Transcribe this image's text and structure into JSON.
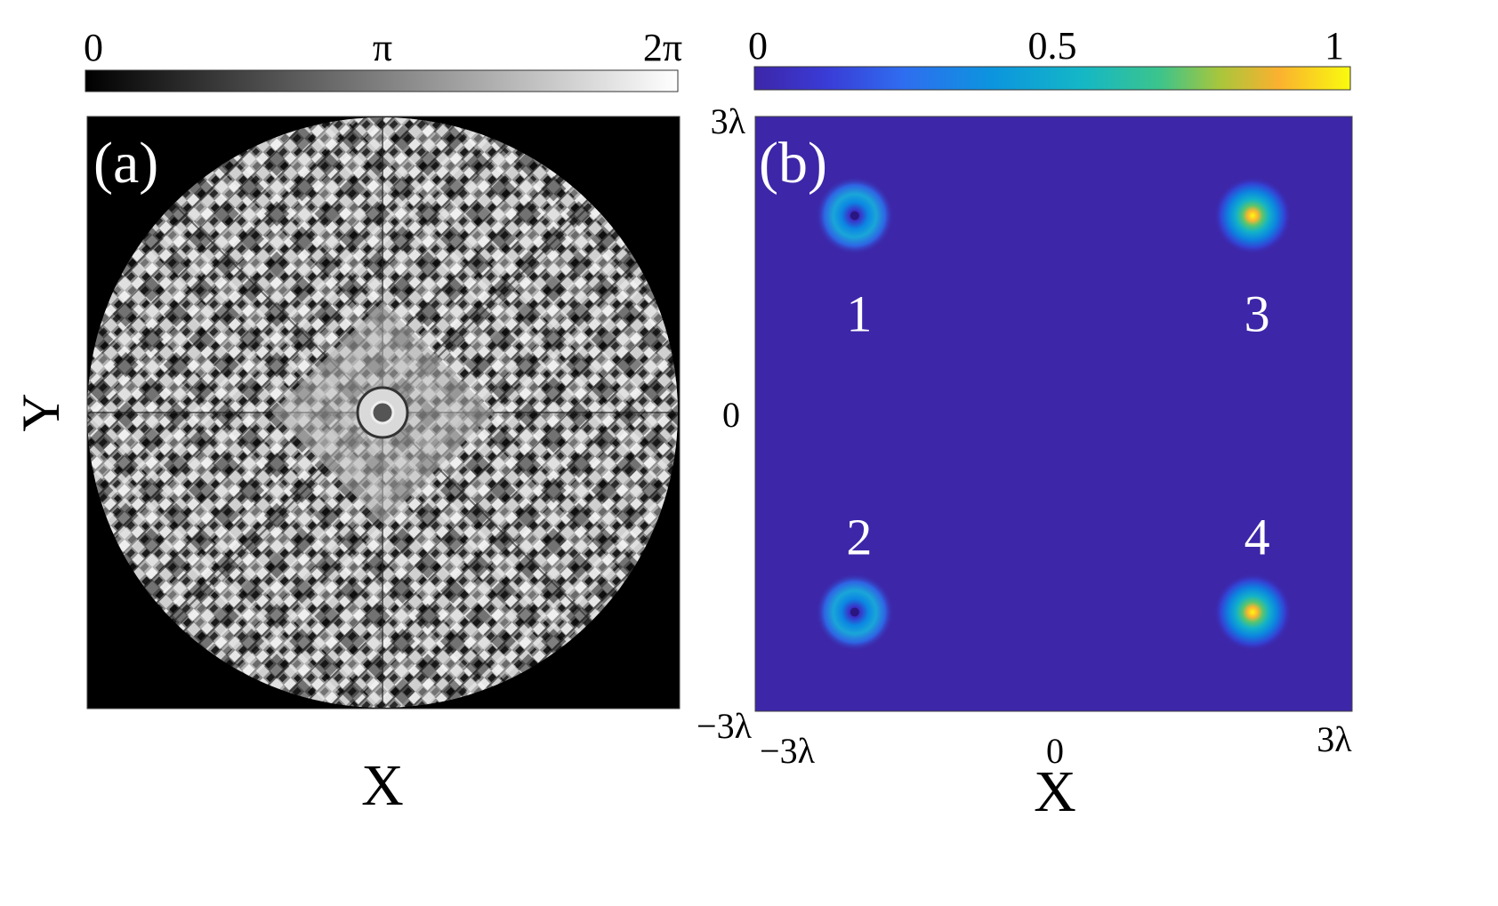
{
  "panel_a": {
    "label": "(a)",
    "colorbar": {
      "ticks": [
        "0",
        "π",
        "2π"
      ],
      "gradient": [
        "#000000",
        "#ffffff"
      ]
    },
    "ylabel": "Y",
    "xlabel": "X",
    "background": "#000000",
    "pattern": "phase mask"
  },
  "panel_b": {
    "label": "(b)",
    "colorbar": {
      "ticks": [
        "0",
        "0.5",
        "1"
      ],
      "colormap": [
        "#3d26a8",
        "#2f58e0",
        "#0c8ee0",
        "#14b5c8",
        "#24c59b",
        "#6ccb5f",
        "#cfba2c",
        "#fbb030",
        "#f9fb0e"
      ]
    },
    "background": "#3d26a8",
    "xlabel": "X",
    "x_ticks": [
      "−3λ",
      "0",
      "3λ"
    ],
    "y_ticks": [
      "3λ",
      "0",
      "−3λ"
    ],
    "spot_labels": [
      "1",
      "2",
      "3",
      "4"
    ]
  },
  "chart_data": {
    "type": "heatmap",
    "title": "",
    "xlabel": "X",
    "ylabel": "Y",
    "colorbar_range": [
      0,
      1
    ],
    "x_range": [
      "−3λ",
      "3λ"
    ],
    "y_range": [
      "−3λ",
      "3λ"
    ],
    "spots": [
      {
        "label": "1",
        "x": -2,
        "y": 2,
        "peak": 0.35,
        "vortex": true
      },
      {
        "label": "2",
        "x": -2,
        "y": -2,
        "peak": 0.35,
        "vortex": true
      },
      {
        "label": "3",
        "x": 2,
        "y": 2,
        "peak": 0.95,
        "vortex": false
      },
      {
        "label": "4",
        "x": 2,
        "y": -2,
        "peak": 0.95,
        "vortex": false
      }
    ]
  }
}
